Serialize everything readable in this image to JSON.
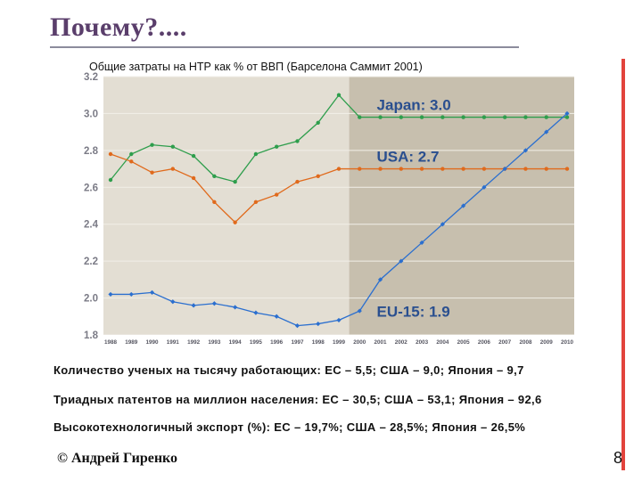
{
  "slide": {
    "title": "Почему?....",
    "author": "© Андрей Гиренко",
    "page_number": "8"
  },
  "stats": [
    "Количество ученых на тысячу работающих: ЕС – 5,5; США – 9,0; Япония – 9,7",
    "Триадных патентов на миллион населения: ЕС – 30,5; США – 53,1; Япония – 92,6",
    "Высокотехнологичный экспорт (%): ЕС – 19,7%; США – 28,5%; Япония – 26,5%"
  ],
  "chart_data": {
    "type": "line",
    "title": "Общие затраты на НТР как % от ВВП (Барселона Саммит 2001)",
    "x": [
      "1988",
      "1989",
      "1990",
      "1991",
      "1992",
      "1993",
      "1994",
      "1995",
      "1996",
      "1997",
      "1998",
      "1999",
      "2000",
      "2001",
      "2002",
      "2003",
      "2004",
      "2005",
      "2006",
      "2007",
      "2008",
      "2009",
      "2010"
    ],
    "ylim": [
      1.8,
      3.2
    ],
    "yticks": [
      "3.2",
      "3.0",
      "2.8",
      "2.6",
      "2.4",
      "2.2",
      "2.0",
      "1.8"
    ],
    "projection_from": "2000",
    "series": [
      {
        "name": "Japan: 3.0",
        "color": "#2e9e4c",
        "values": [
          2.64,
          2.78,
          2.83,
          2.82,
          2.77,
          2.66,
          2.63,
          2.78,
          2.82,
          2.85,
          2.95,
          3.1,
          2.98,
          2.98,
          2.98,
          2.98,
          2.98,
          2.98,
          2.98,
          2.98,
          2.98,
          2.98,
          2.98
        ]
      },
      {
        "name": "USA: 2.7",
        "color": "#e06a1c",
        "values": [
          2.78,
          2.74,
          2.68,
          2.7,
          2.65,
          2.52,
          2.41,
          2.52,
          2.56,
          2.63,
          2.66,
          2.7,
          2.7,
          2.7,
          2.7,
          2.7,
          2.7,
          2.7,
          2.7,
          2.7,
          2.7,
          2.7,
          2.7
        ]
      },
      {
        "name": "EU-15: 1.9",
        "color": "#2b6fcf",
        "values": [
          2.02,
          2.02,
          2.03,
          1.98,
          1.96,
          1.97,
          1.95,
          1.92,
          1.9,
          1.85,
          1.86,
          1.88,
          1.93,
          2.1,
          2.2,
          2.3,
          2.4,
          2.5,
          2.6,
          2.7,
          2.8,
          2.9,
          3.0
        ]
      }
    ]
  }
}
